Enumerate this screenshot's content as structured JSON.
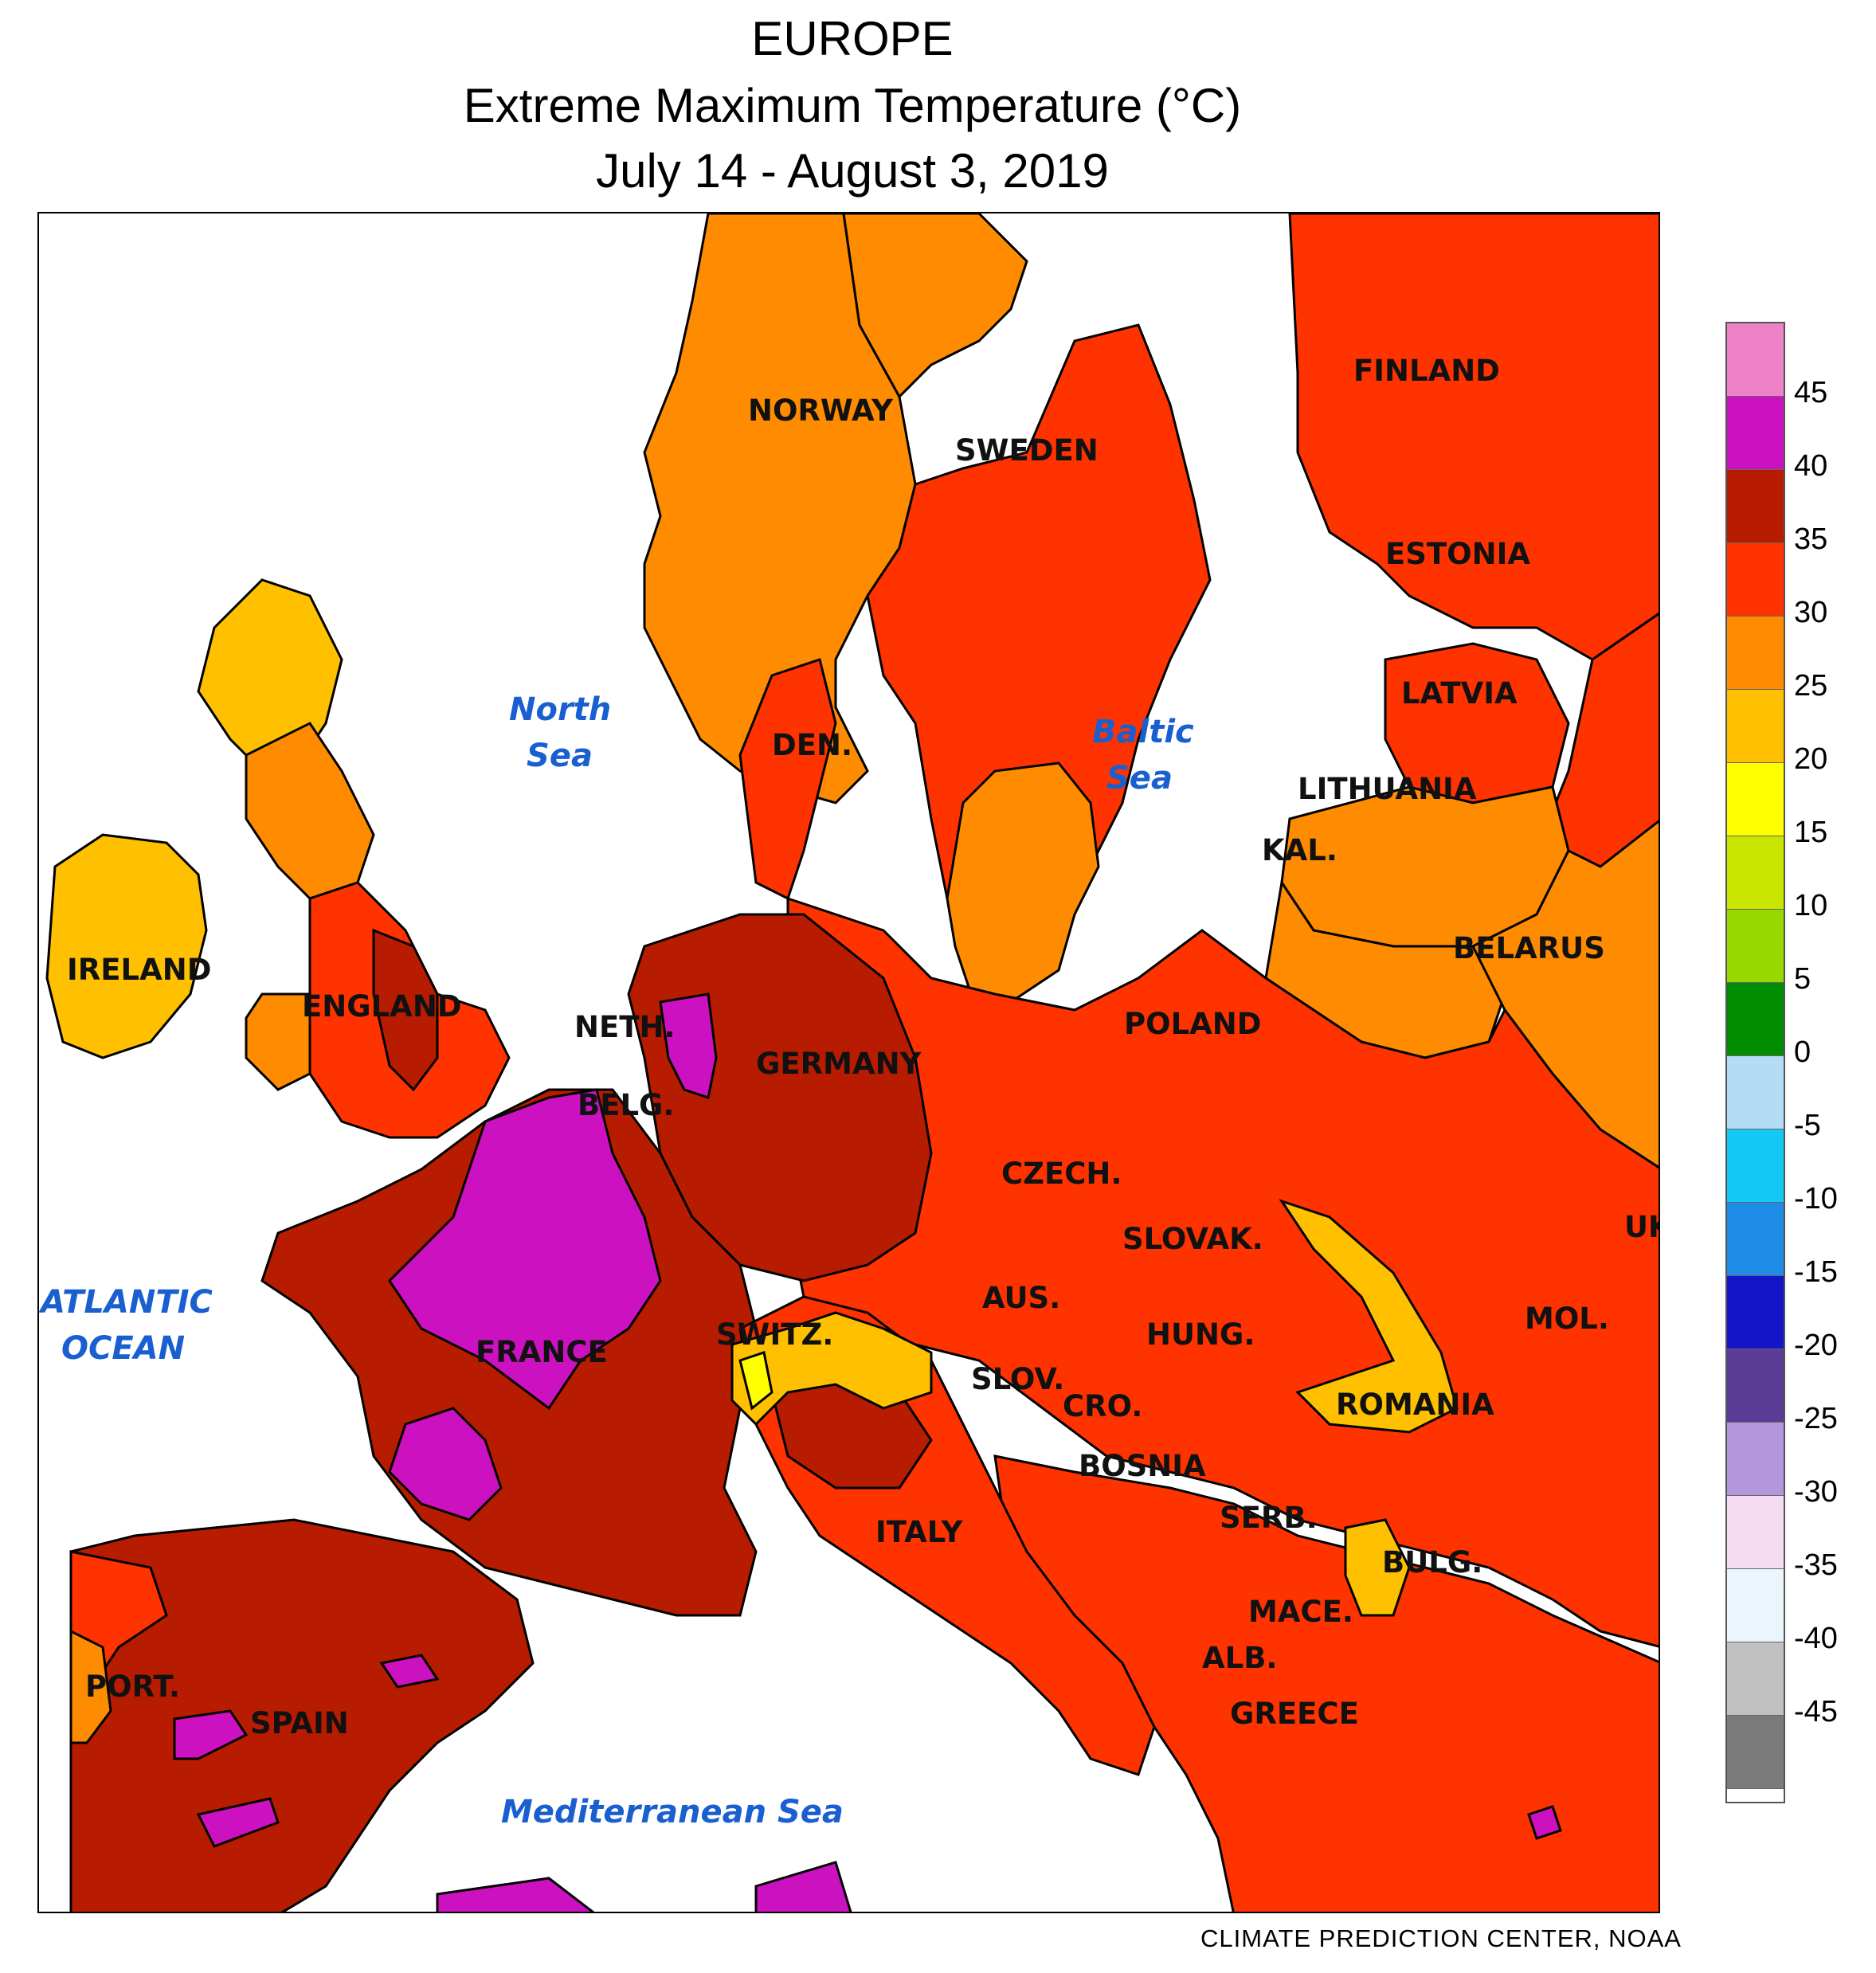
{
  "header": {
    "title": "EUROPE",
    "subtitle": "Extreme Maximum Temperature (°C)",
    "period": "July 14 - August 3, 2019"
  },
  "map": {
    "country_labels": [
      "FINLAND",
      "NORWAY",
      "SWEDEN",
      "ESTONIA",
      "LATVIA",
      "LITHUANIA",
      "KAL.",
      "BELARUS",
      "DEN.",
      "IRELAND",
      "ENGLAND",
      "NETH.",
      "BELG.",
      "GERMANY",
      "POLAND",
      "CZECH.",
      "SLOVAK.",
      "UK",
      "AUS.",
      "SWITZ.",
      "FRANCE",
      "HUNG.",
      "MOL.",
      "SLOV.",
      "CRO.",
      "ROMANIA",
      "BOSNIA",
      "SERB.",
      "BULG.",
      "ITALY",
      "MACE.",
      "ALB.",
      "GREECE",
      "PORT.",
      "SPAIN"
    ],
    "sea_labels": [
      "North",
      "Sea",
      "Baltic",
      "Sea",
      "ATLANTIC",
      "OCEAN",
      "Mediterranean Sea"
    ]
  },
  "legend": {
    "bins": [
      {
        "color": "#ee82c8"
      },
      {
        "color": "#cc11c0"
      },
      {
        "color": "#b81c00"
      },
      {
        "color": "#ff3300"
      },
      {
        "color": "#ff8c00"
      },
      {
        "color": "#ffc000"
      },
      {
        "color": "#ffff00"
      },
      {
        "color": "#c8e600"
      },
      {
        "color": "#96d800"
      },
      {
        "color": "#008c00"
      },
      {
        "color": "#b4dcf5"
      },
      {
        "color": "#14c8f5"
      },
      {
        "color": "#1e8ce6"
      },
      {
        "color": "#1414c8"
      },
      {
        "color": "#5a3c96"
      },
      {
        "color": "#b496dc"
      },
      {
        "color": "#f5dcf0"
      },
      {
        "color": "#eaf5fc"
      },
      {
        "color": "#c0c0c0"
      },
      {
        "color": "#7a7a7a"
      }
    ],
    "ticks": [
      "45",
      "40",
      "35",
      "30",
      "25",
      "20",
      "15",
      "10",
      "5",
      "0",
      "-5",
      "-10",
      "-15",
      "-20",
      "-25",
      "-30",
      "-35",
      "-40",
      "-45"
    ]
  },
  "credit": "CLIMATE PREDICTION CENTER, NOAA"
}
